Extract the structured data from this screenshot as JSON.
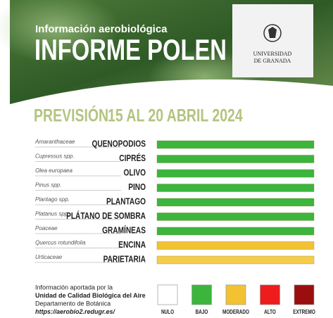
{
  "header": {
    "subtitle": "Información aerobiológica",
    "title": "INFORME POLEN",
    "university": [
      "UNIVERSIDAD",
      "DE GRANADA"
    ]
  },
  "forecast": {
    "label": "PREVISIÓN",
    "dates": "15 AL 20 ABRIL 2024"
  },
  "rows": [
    {
      "scientific": "Amaranthaceae",
      "common": "QUENOPODIOS",
      "color": "#3cb53c"
    },
    {
      "scientific": "Cupressus spp.",
      "common": "CIPRÉS",
      "color": "#3cb53c"
    },
    {
      "scientific": "Olea europaea",
      "common": "OLIVO",
      "color": "#3cb53c"
    },
    {
      "scientific": "Pinus spp.",
      "common": "PINO",
      "color": "#3cb53c"
    },
    {
      "scientific": "Plantago spp.",
      "common": "PLANTAGO",
      "color": "#3cb53c"
    },
    {
      "scientific": "Platanus spp.",
      "common": "PLÁTANO DE SOMBRA",
      "color": "#3cb53c"
    },
    {
      "scientific": "Poaceae",
      "common": "GRAMÍNEAS",
      "color": "#3cb53c"
    },
    {
      "scientific": "Quercus rotundifolia",
      "common": "ENCINA",
      "color": "#f2c232"
    },
    {
      "scientific": "Urticaceae",
      "common": "PARIETARIA",
      "color": "#f5cd4a"
    }
  ],
  "legend": [
    {
      "label": "NULO",
      "color": "#ffffff"
    },
    {
      "label": "BAJO",
      "color": "#3cb53c"
    },
    {
      "label": "MODERADO",
      "color": "#f2c232"
    },
    {
      "label": "ALTO",
      "color": "#ee1c1c"
    },
    {
      "label": "EXTREMO",
      "color": "#9b0e0e"
    }
  ],
  "footer": [
    "Información aportada por la",
    "Unidad de Calidad Biológica del Aire",
    "Departamento de Botánica",
    "https://aerobio2.redugr.es/"
  ]
}
